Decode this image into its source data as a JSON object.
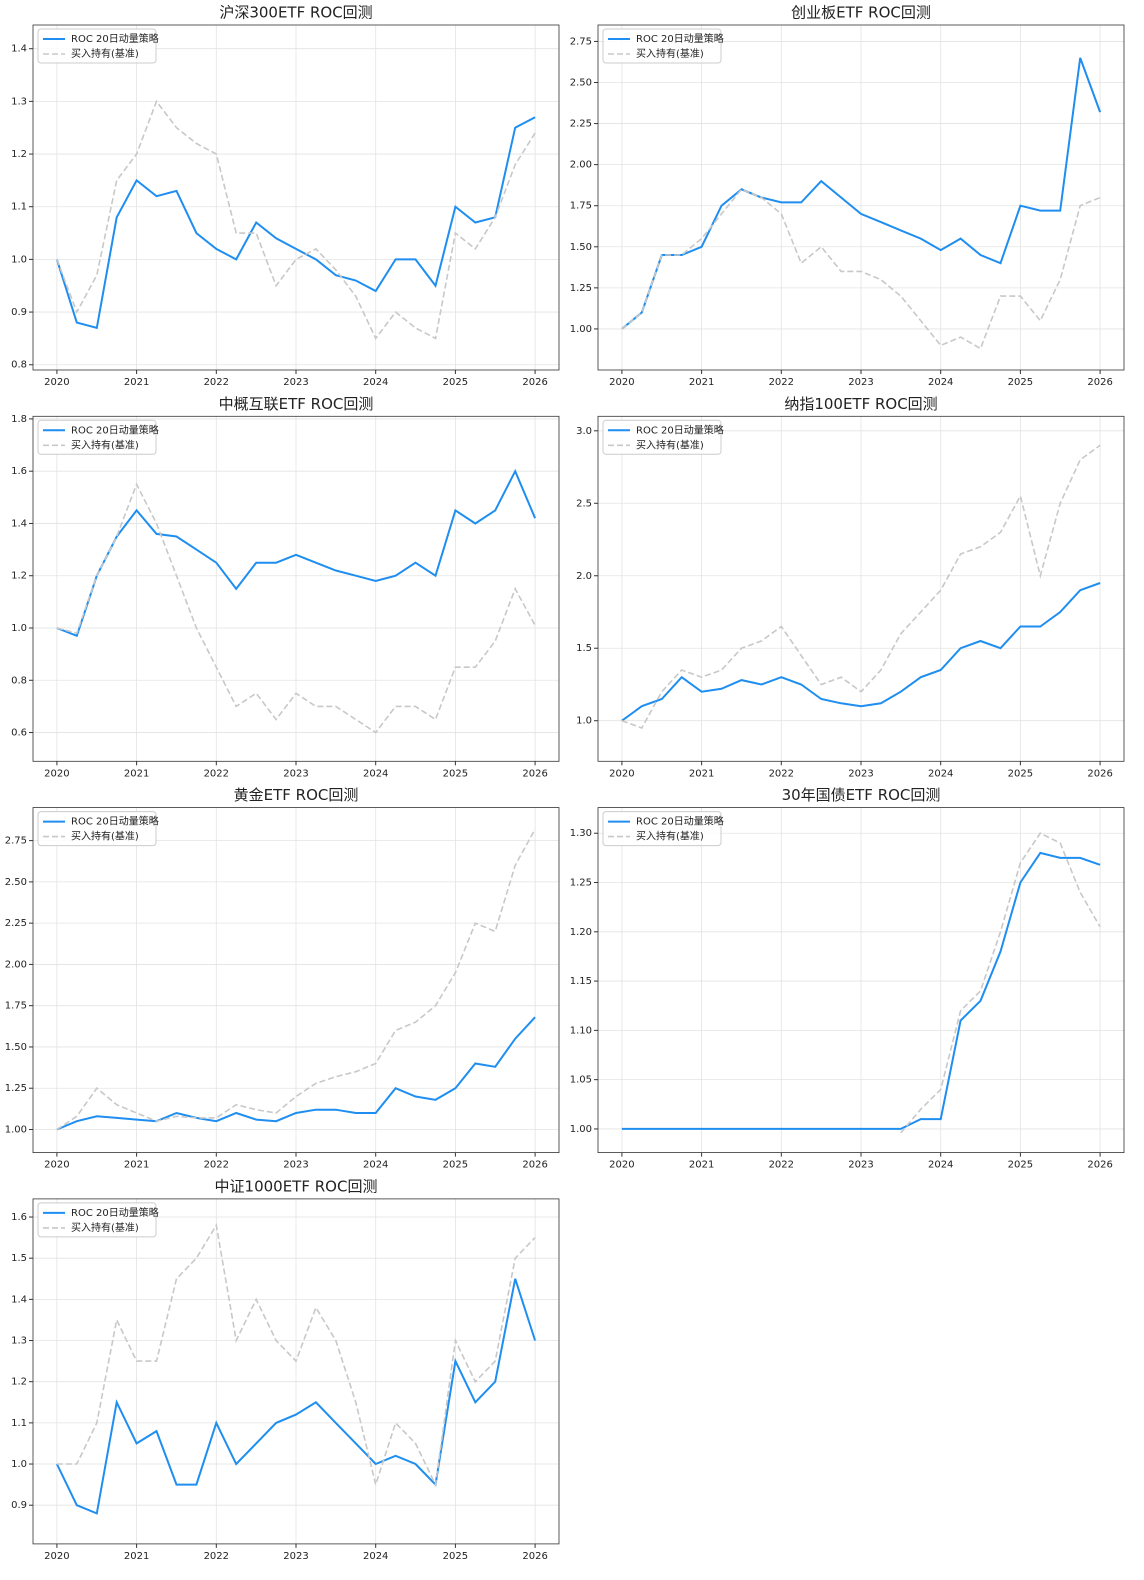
{
  "chart_data": [
    {
      "type": "line",
      "title": "沪深300ETF ROC回测",
      "legend": "upper left",
      "grid": true,
      "x": [
        2020,
        2020.25,
        2020.5,
        2020.75,
        2021,
        2021.25,
        2021.5,
        2021.75,
        2022,
        2022.25,
        2022.5,
        2022.75,
        2023,
        2023.25,
        2023.5,
        2023.75,
        2024,
        2024.25,
        2024.5,
        2024.75,
        2025,
        2025.25,
        2025.5,
        2025.75,
        2026
      ],
      "xlim": [
        2019.7,
        2026.3
      ],
      "xticks": [
        2020,
        2021,
        2022,
        2023,
        2024,
        2025,
        2026
      ],
      "ylim": [
        0.79,
        1.445
      ],
      "yticks": [
        0.8,
        0.9,
        {
          "value": 1,
          "label": "1.0"
        },
        1.1,
        1.2,
        1.3,
        1.4
      ],
      "series": [
        {
          "name": "ROC 20日动量策略",
          "color": "#1e8ef0",
          "dashed": false,
          "values": [
            1.0,
            0.88,
            0.87,
            1.08,
            1.15,
            1.12,
            1.13,
            1.05,
            1.02,
            1.0,
            1.07,
            1.04,
            1.02,
            1.0,
            0.97,
            0.96,
            0.94,
            1.0,
            1.0,
            0.95,
            1.1,
            1.07,
            1.08,
            1.25,
            1.27
          ]
        },
        {
          "name": "买入持有(基准)",
          "color": "#c8c8c8",
          "dashed": true,
          "values": [
            1.0,
            0.9,
            0.97,
            1.15,
            1.2,
            1.3,
            1.25,
            1.22,
            1.2,
            1.05,
            1.05,
            0.95,
            1.0,
            1.02,
            0.98,
            0.93,
            0.85,
            0.9,
            0.87,
            0.85,
            1.05,
            1.02,
            1.08,
            1.18,
            1.24
          ]
        }
      ]
    },
    {
      "type": "line",
      "title": "创业板ETF ROC回测",
      "legend": "upper left",
      "grid": true,
      "x": [
        2020,
        2020.25,
        2020.5,
        2020.75,
        2021,
        2021.25,
        2021.5,
        2021.75,
        2022,
        2022.25,
        2022.5,
        2022.75,
        2023,
        2023.25,
        2023.5,
        2023.75,
        2024,
        2024.25,
        2024.5,
        2024.75,
        2025,
        2025.25,
        2025.5,
        2025.75,
        2026
      ],
      "xlim": [
        2019.7,
        2026.3
      ],
      "xticks": [
        2020,
        2021,
        2022,
        2023,
        2024,
        2025,
        2026
      ],
      "ylim": [
        0.75,
        2.85
      ],
      "yticks": [
        {
          "value": 1,
          "label": "1.00"
        },
        1.25,
        {
          "value": 1.5,
          "label": "1.50"
        },
        1.75,
        {
          "value": 2,
          "label": "2.00"
        },
        2.25,
        {
          "value": 2.5,
          "label": "2.50"
        },
        2.75
      ],
      "series": [
        {
          "name": "ROC 20日动量策略",
          "color": "#1e8ef0",
          "dashed": false,
          "values": [
            1.0,
            1.1,
            1.45,
            1.45,
            1.5,
            1.75,
            1.85,
            1.8,
            1.77,
            1.77,
            1.9,
            1.8,
            1.7,
            1.65,
            1.6,
            1.55,
            1.48,
            1.55,
            1.45,
            1.4,
            1.75,
            1.72,
            1.72,
            2.65,
            2.32
          ]
        },
        {
          "name": "买入持有(基准)",
          "color": "#c8c8c8",
          "dashed": true,
          "values": [
            1.0,
            1.1,
            1.45,
            1.45,
            1.55,
            1.7,
            1.85,
            1.8,
            1.7,
            1.4,
            1.5,
            1.35,
            1.35,
            1.3,
            1.2,
            1.05,
            0.9,
            0.95,
            0.88,
            1.2,
            1.2,
            1.05,
            1.3,
            1.75,
            1.8
          ]
        }
      ]
    },
    {
      "type": "line",
      "title": "中概互联ETF ROC回测",
      "legend": "upper left",
      "grid": true,
      "x": [
        2020,
        2020.25,
        2020.5,
        2020.75,
        2021,
        2021.25,
        2021.5,
        2021.75,
        2022,
        2022.25,
        2022.5,
        2022.75,
        2023,
        2023.25,
        2023.5,
        2023.75,
        2024,
        2024.25,
        2024.5,
        2024.75,
        2025,
        2025.25,
        2025.5,
        2025.75,
        2026
      ],
      "xlim": [
        2019.7,
        2026.3
      ],
      "xticks": [
        2020,
        2021,
        2022,
        2023,
        2024,
        2025,
        2026
      ],
      "ylim": [
        0.49,
        1.81
      ],
      "yticks": [
        0.6,
        0.8,
        {
          "value": 1,
          "label": "1.0"
        },
        1.2,
        1.4,
        1.6,
        1.8
      ],
      "series": [
        {
          "name": "ROC 20日动量策略",
          "color": "#1e8ef0",
          "dashed": false,
          "values": [
            1.0,
            0.97,
            1.2,
            1.35,
            1.45,
            1.36,
            1.35,
            1.3,
            1.25,
            1.15,
            1.25,
            1.25,
            1.28,
            1.25,
            1.22,
            1.2,
            1.18,
            1.2,
            1.25,
            1.2,
            1.45,
            1.4,
            1.45,
            1.6,
            1.42
          ]
        },
        {
          "name": "买入持有(基准)",
          "color": "#c8c8c8",
          "dashed": true,
          "values": [
            1.0,
            0.98,
            1.2,
            1.35,
            1.55,
            1.4,
            1.2,
            1.0,
            0.85,
            0.7,
            0.75,
            0.65,
            0.75,
            0.7,
            0.7,
            0.65,
            0.6,
            0.7,
            0.7,
            0.65,
            0.85,
            0.85,
            0.95,
            1.15,
            1.01
          ]
        }
      ]
    },
    {
      "type": "line",
      "title": "纳指100ETF ROC回测",
      "legend": "upper left",
      "grid": true,
      "x": [
        2020,
        2020.25,
        2020.5,
        2020.75,
        2021,
        2021.25,
        2021.5,
        2021.75,
        2022,
        2022.25,
        2022.5,
        2022.75,
        2023,
        2023.25,
        2023.5,
        2023.75,
        2024,
        2024.25,
        2024.5,
        2024.75,
        2025,
        2025.25,
        2025.5,
        2025.75,
        2026
      ],
      "xlim": [
        2019.7,
        2026.3
      ],
      "xticks": [
        2020,
        2021,
        2022,
        2023,
        2024,
        2025,
        2026
      ],
      "ylim": [
        0.72,
        3.1
      ],
      "yticks": [
        {
          "value": 1,
          "label": "1.0"
        },
        1.5,
        {
          "value": 2,
          "label": "2.0"
        },
        2.5,
        {
          "value": 3,
          "label": "3.0"
        }
      ],
      "series": [
        {
          "name": "ROC 20日动量策略",
          "color": "#1e8ef0",
          "dashed": false,
          "values": [
            1.0,
            1.1,
            1.15,
            1.3,
            1.2,
            1.22,
            1.28,
            1.25,
            1.3,
            1.25,
            1.15,
            1.12,
            1.1,
            1.12,
            1.2,
            1.3,
            1.35,
            1.5,
            1.55,
            1.5,
            1.65,
            1.65,
            1.75,
            1.9,
            1.95
          ]
        },
        {
          "name": "买入持有(基准)",
          "color": "#c8c8c8",
          "dashed": true,
          "values": [
            1.0,
            0.95,
            1.2,
            1.35,
            1.3,
            1.35,
            1.5,
            1.55,
            1.65,
            1.45,
            1.25,
            1.3,
            1.2,
            1.35,
            1.6,
            1.75,
            1.9,
            2.15,
            2.2,
            2.3,
            2.55,
            2.0,
            2.5,
            2.8,
            2.9
          ]
        }
      ]
    },
    {
      "type": "line",
      "title": "黄金ETF ROC回测",
      "legend": "upper left",
      "grid": true,
      "x": [
        2020,
        2020.25,
        2020.5,
        2020.75,
        2021,
        2021.25,
        2021.5,
        2021.75,
        2022,
        2022.25,
        2022.5,
        2022.75,
        2023,
        2023.25,
        2023.5,
        2023.75,
        2024,
        2024.25,
        2024.5,
        2024.75,
        2025,
        2025.25,
        2025.5,
        2025.75,
        2026
      ],
      "xlim": [
        2019.7,
        2026.3
      ],
      "xticks": [
        2020,
        2021,
        2022,
        2023,
        2024,
        2025,
        2026
      ],
      "ylim": [
        0.86,
        2.95
      ],
      "yticks": [
        {
          "value": 1,
          "label": "1.00"
        },
        1.25,
        {
          "value": 1.5,
          "label": "1.50"
        },
        1.75,
        {
          "value": 2,
          "label": "2.00"
        },
        2.25,
        {
          "value": 2.5,
          "label": "2.50"
        },
        2.75
      ],
      "series": [
        {
          "name": "ROC 20日动量策略",
          "color": "#1e8ef0",
          "dashed": false,
          "values": [
            1.0,
            1.05,
            1.08,
            1.07,
            1.06,
            1.05,
            1.1,
            1.07,
            1.05,
            1.1,
            1.06,
            1.05,
            1.1,
            1.12,
            1.12,
            1.1,
            1.1,
            1.25,
            1.2,
            1.18,
            1.25,
            1.4,
            1.38,
            1.55,
            1.68
          ]
        },
        {
          "name": "买入持有(基准)",
          "color": "#c8c8c8",
          "dashed": true,
          "values": [
            1.0,
            1.08,
            1.25,
            1.15,
            1.1,
            1.05,
            1.08,
            1.07,
            1.07,
            1.15,
            1.12,
            1.1,
            1.2,
            1.28,
            1.32,
            1.35,
            1.4,
            1.6,
            1.65,
            1.75,
            1.95,
            2.25,
            2.2,
            2.6,
            2.82
          ]
        }
      ]
    },
    {
      "type": "line",
      "title": "30年国债ETF ROC回测",
      "legend": "upper left",
      "grid": true,
      "x": [
        2020,
        2020.25,
        2020.5,
        2020.75,
        2021,
        2021.25,
        2021.5,
        2021.75,
        2022,
        2022.25,
        2022.5,
        2022.75,
        2023,
        2023.25,
        2023.5,
        2023.75,
        2024,
        2024.25,
        2024.5,
        2024.75,
        2025,
        2025.25,
        2025.5,
        2025.75,
        2026
      ],
      "xlim": [
        2019.7,
        2026.3
      ],
      "xticks": [
        2020,
        2021,
        2022,
        2023,
        2024,
        2025,
        2026
      ],
      "ylim": [
        0.976,
        1.326
      ],
      "yticks": [
        {
          "value": 1,
          "label": "1.00"
        },
        1.05,
        {
          "value": 1.1,
          "label": "1.10"
        },
        1.15,
        {
          "value": 1.2,
          "label": "1.20"
        },
        1.25,
        {
          "value": 1.3,
          "label": "1.30"
        }
      ],
      "series": [
        {
          "name": "ROC 20日动量策略",
          "color": "#1e8ef0",
          "dashed": false,
          "values": [
            1.0,
            1.0,
            1.0,
            1.0,
            1.0,
            1.0,
            1.0,
            1.0,
            1.0,
            1.0,
            1.0,
            1.0,
            1.0,
            1.0,
            1.0,
            1.01,
            1.01,
            1.11,
            1.13,
            1.18,
            1.25,
            1.28,
            1.275,
            1.275,
            1.268
          ]
        },
        {
          "name": "买入持有(基准)",
          "color": "#c8c8c8",
          "dashed": true,
          "values": [
            null,
            null,
            null,
            null,
            null,
            null,
            null,
            null,
            null,
            null,
            null,
            null,
            null,
            null,
            0.996,
            1.02,
            1.04,
            1.12,
            1.14,
            1.2,
            1.27,
            1.3,
            1.29,
            1.24,
            1.205
          ]
        }
      ]
    },
    {
      "type": "line",
      "title": "中证1000ETF ROC回测",
      "legend": "upper left",
      "grid": true,
      "x": [
        2020,
        2020.25,
        2020.5,
        2020.75,
        2021,
        2021.25,
        2021.5,
        2021.75,
        2022,
        2022.25,
        2022.5,
        2022.75,
        2023,
        2023.25,
        2023.5,
        2023.75,
        2024,
        2024.25,
        2024.5,
        2024.75,
        2025,
        2025.25,
        2025.5,
        2025.75,
        2026
      ],
      "xlim": [
        2019.7,
        2026.3
      ],
      "xticks": [
        2020,
        2021,
        2022,
        2023,
        2024,
        2025,
        2026
      ],
      "ylim": [
        0.806,
        1.644
      ],
      "yticks": [
        0.9,
        {
          "value": 1,
          "label": "1.0"
        },
        1.1,
        1.2,
        1.3,
        1.4,
        1.5,
        1.6
      ],
      "series": [
        {
          "name": "ROC 20日动量策略",
          "color": "#1e8ef0",
          "dashed": false,
          "values": [
            1.0,
            0.9,
            0.88,
            1.15,
            1.05,
            1.08,
            0.95,
            0.95,
            1.1,
            1.0,
            1.05,
            1.1,
            1.12,
            1.15,
            1.1,
            1.05,
            1.0,
            1.02,
            1.0,
            0.95,
            1.25,
            1.15,
            1.2,
            1.45,
            1.3
          ]
        },
        {
          "name": "买入持有(基准)",
          "color": "#c8c8c8",
          "dashed": true,
          "values": [
            1.0,
            1.0,
            1.1,
            1.35,
            1.25,
            1.25,
            1.45,
            1.5,
            1.58,
            1.3,
            1.4,
            1.3,
            1.25,
            1.38,
            1.3,
            1.15,
            0.95,
            1.1,
            1.05,
            0.95,
            1.3,
            1.2,
            1.25,
            1.5,
            1.55
          ]
        }
      ]
    }
  ]
}
